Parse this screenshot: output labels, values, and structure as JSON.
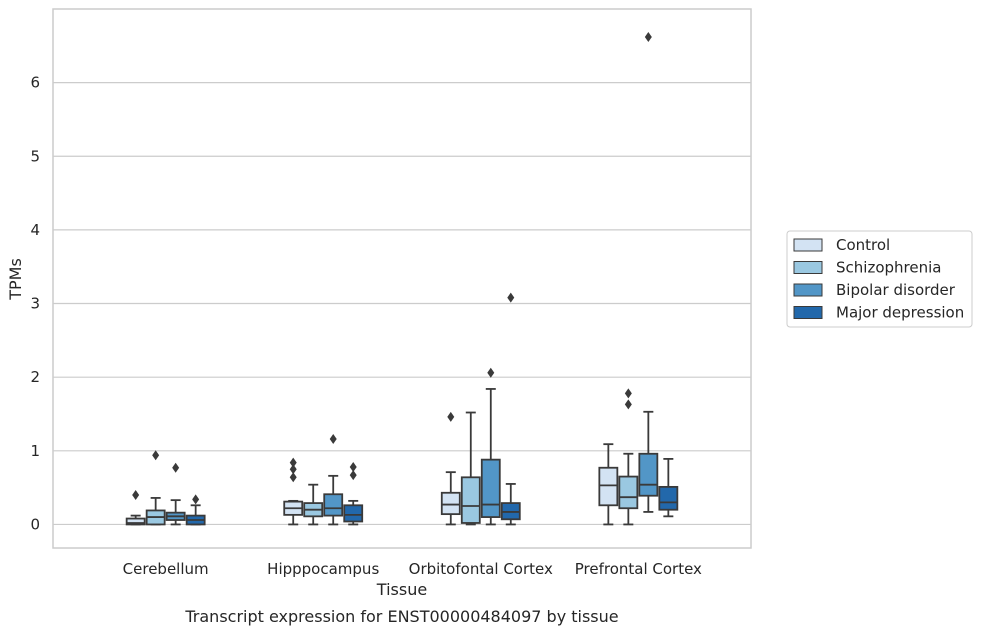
{
  "chart_data": {
    "type": "boxplot",
    "title": "",
    "caption": "Transcript expression for ENST00000484097 by tissue",
    "xlabel": "Tissue",
    "ylabel": "TPMs",
    "ylim": [
      -0.32,
      7.0
    ],
    "yticks": [
      0,
      1,
      2,
      3,
      4,
      5,
      6
    ],
    "grid": "horizontal",
    "legend_position": "right",
    "categories": [
      "Cerebellum",
      "Hipppocampus",
      "Orbitofontal Cortex",
      "Prefrontal Cortex"
    ],
    "series": [
      {
        "name": "Control",
        "color": "#d3e3f3",
        "boxes": [
          {
            "q1": 0.0,
            "median": 0.02,
            "q3": 0.08,
            "whisker_low": 0.0,
            "whisker_high": 0.12,
            "outliers": [
              0.4
            ]
          },
          {
            "q1": 0.13,
            "median": 0.22,
            "q3": 0.31,
            "whisker_low": 0.0,
            "whisker_high": 0.32,
            "outliers": [
              0.64,
              0.75,
              0.84
            ]
          },
          {
            "q1": 0.14,
            "median": 0.27,
            "q3": 0.43,
            "whisker_low": 0.0,
            "whisker_high": 0.71,
            "outliers": [
              1.46
            ]
          },
          {
            "q1": 0.26,
            "median": 0.53,
            "q3": 0.77,
            "whisker_low": 0.0,
            "whisker_high": 1.09,
            "outliers": []
          }
        ]
      },
      {
        "name": "Schizophrenia",
        "color": "#9ac8e1",
        "boxes": [
          {
            "q1": 0.0,
            "median": 0.1,
            "q3": 0.19,
            "whisker_low": 0.0,
            "whisker_high": 0.36,
            "outliers": [
              0.94
            ]
          },
          {
            "q1": 0.11,
            "median": 0.2,
            "q3": 0.29,
            "whisker_low": 0.0,
            "whisker_high": 0.54,
            "outliers": []
          },
          {
            "q1": 0.02,
            "median": 0.25,
            "q3": 0.64,
            "whisker_low": 0.0,
            "whisker_high": 1.52,
            "outliers": []
          },
          {
            "q1": 0.22,
            "median": 0.37,
            "q3": 0.65,
            "whisker_low": 0.0,
            "whisker_high": 0.96,
            "outliers": [
              1.63,
              1.78
            ]
          }
        ]
      },
      {
        "name": "Bipolar disorder",
        "color": "#5296c7",
        "boxes": [
          {
            "q1": 0.06,
            "median": 0.11,
            "q3": 0.16,
            "whisker_low": 0.0,
            "whisker_high": 0.33,
            "outliers": [
              0.77
            ]
          },
          {
            "q1": 0.12,
            "median": 0.22,
            "q3": 0.41,
            "whisker_low": 0.0,
            "whisker_high": 0.66,
            "outliers": [
              1.16
            ]
          },
          {
            "q1": 0.1,
            "median": 0.27,
            "q3": 0.88,
            "whisker_low": 0.0,
            "whisker_high": 1.84,
            "outliers": [
              2.06
            ]
          },
          {
            "q1": 0.39,
            "median": 0.54,
            "q3": 0.96,
            "whisker_low": 0.17,
            "whisker_high": 1.53,
            "outliers": [
              6.62
            ]
          }
        ]
      },
      {
        "name": "Major depression",
        "color": "#2268ab",
        "boxes": [
          {
            "q1": 0.0,
            "median": 0.06,
            "q3": 0.12,
            "whisker_low": 0.0,
            "whisker_high": 0.26,
            "outliers": [
              0.34
            ]
          },
          {
            "q1": 0.04,
            "median": 0.13,
            "q3": 0.26,
            "whisker_low": 0.0,
            "whisker_high": 0.32,
            "outliers": [
              0.67,
              0.78
            ]
          },
          {
            "q1": 0.07,
            "median": 0.17,
            "q3": 0.29,
            "whisker_low": 0.0,
            "whisker_high": 0.55,
            "outliers": [
              3.08
            ]
          },
          {
            "q1": 0.2,
            "median": 0.3,
            "q3": 0.51,
            "whisker_low": 0.11,
            "whisker_high": 0.89,
            "outliers": []
          }
        ]
      }
    ]
  }
}
